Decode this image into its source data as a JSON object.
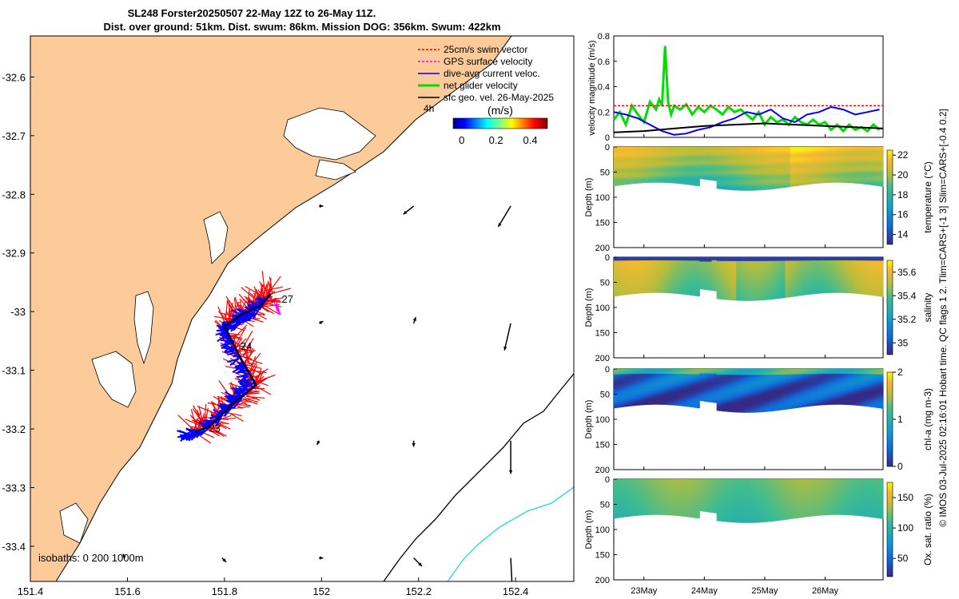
{
  "title": {
    "line1": "SL248 Forster20250507 22-May 12Z to 26-May 11Z.",
    "line2": "Dist. over ground: 51km. Dist. swum: 86km. Mission DOG: 356km. Swum: 422km"
  },
  "footer_text": "© IMOS 03-Jul-2025 02:16:01 Hobart time. QC flags 1  2. Tlim=CARS+[-1 3] Slim=CARS+[-0.4 0.2]",
  "colors": {
    "land": "#fccb99",
    "swim": "#ff0000",
    "gps": "#ff00ff",
    "dive_avg": "#0000ff",
    "net": "#00dd00",
    "geo": "#000000",
    "isobath_200": "#000000",
    "isobath_1000": "#33dddd"
  },
  "map": {
    "legend": [
      {
        "label": "25cm/s swim vector",
        "key": "swim"
      },
      {
        "label": "GPS surface velocity",
        "key": "gps"
      },
      {
        "label": "dive-avg current veloc.",
        "key": "dive_avg"
      },
      {
        "label": "net glider velocity",
        "key": "net"
      },
      {
        "label": "sfc geo. vel. 26-May-2025",
        "key": "geo"
      }
    ],
    "legend_extra": "4h",
    "colorbar_label": "(m/s)",
    "colorbar_ticks": [
      "0",
      "0.2",
      "0.4"
    ],
    "colorbar_range": [
      -0.05,
      0.5
    ],
    "isobaths_label": "isobaths: 0   200  1000m",
    "lon_ticks": [
      "151.4",
      "151.6",
      "151.8",
      "152",
      "152.2",
      "152.4"
    ],
    "lon_values": [
      151.4,
      151.6,
      151.8,
      152.0,
      152.2,
      152.4
    ],
    "lon_range": [
      151.4,
      152.52
    ],
    "lat_ticks": [
      "-32.6",
      "-32.7",
      "-32.8",
      "-32.9",
      "-33",
      "-33.1",
      "-33.2",
      "-33.3",
      "-33.4"
    ],
    "lat_values": [
      -32.6,
      -32.7,
      -32.8,
      -32.9,
      -33.0,
      -33.1,
      -33.2,
      -33.3,
      -33.4
    ],
    "lat_range": [
      -33.46,
      -32.53
    ],
    "day_labels": [
      {
        "text": "27",
        "lon": 151.93,
        "lat": -32.985
      },
      {
        "text": "24",
        "lon": 151.845,
        "lat": -33.065
      },
      {
        "text": "23",
        "lon": 151.78,
        "lat": -33.205
      }
    ],
    "track_net": [
      [
        151.74,
        -33.205
      ],
      [
        151.77,
        -33.195
      ],
      [
        151.82,
        -33.155
      ],
      [
        151.865,
        -33.125
      ],
      [
        151.83,
        -33.075
      ],
      [
        151.8,
        -33.025
      ],
      [
        151.835,
        -33.005
      ],
      [
        151.875,
        -32.99
      ],
      [
        151.895,
        -32.97
      ]
    ],
    "track_dive": [
      [
        151.72,
        -33.21
      ],
      [
        151.75,
        -33.205
      ],
      [
        151.79,
        -33.18
      ],
      [
        151.83,
        -33.145
      ],
      [
        151.86,
        -33.125
      ],
      [
        151.825,
        -33.07
      ],
      [
        151.805,
        -33.03
      ],
      [
        151.84,
        -33.01
      ],
      [
        151.87,
        -32.995
      ],
      [
        151.89,
        -32.975
      ]
    ],
    "geo_arrows": [
      {
        "lon": 151.995,
        "lat": -32.82,
        "u": 0.02,
        "v": 0.0
      },
      {
        "lon": 152.19,
        "lat": -32.82,
        "u": -0.05,
        "v": -0.04
      },
      {
        "lon": 152.39,
        "lat": -32.82,
        "u": -0.06,
        "v": -0.1
      },
      {
        "lon": 151.995,
        "lat": -33.02,
        "u": 0.02,
        "v": 0.01
      },
      {
        "lon": 152.19,
        "lat": -33.02,
        "u": 0.01,
        "v": 0.03
      },
      {
        "lon": 152.39,
        "lat": -33.02,
        "u": -0.03,
        "v": -0.13
      },
      {
        "lon": 151.995,
        "lat": -33.22,
        "u": -0.01,
        "v": -0.02
      },
      {
        "lon": 152.19,
        "lat": -33.22,
        "u": 0.0,
        "v": -0.03
      },
      {
        "lon": 152.39,
        "lat": -33.22,
        "u": 0.0,
        "v": -0.16
      },
      {
        "lon": 151.795,
        "lat": -33.42,
        "u": 0.02,
        "v": -0.02
      },
      {
        "lon": 151.995,
        "lat": -33.42,
        "u": 0.02,
        "v": 0.0
      },
      {
        "lon": 152.19,
        "lat": -33.42,
        "u": 0.04,
        "v": -0.04
      },
      {
        "lon": 152.39,
        "lat": -33.42,
        "u": 0.01,
        "v": -0.2
      },
      {
        "lon": 151.595,
        "lat": -33.42,
        "u": -0.01,
        "v": 0.02
      }
    ]
  },
  "chart_data": [
    {
      "type": "line",
      "title": "",
      "ylabel": "velocity magnitude (m/s)",
      "ylim": [
        0,
        0.8
      ],
      "yticks": [
        "0",
        "0.2",
        "0.4",
        "0.6",
        "0.8"
      ],
      "xlim": [
        22.5,
        26.96
      ],
      "series": [
        {
          "name": "net glider velocity",
          "color": "#00dd00",
          "x": [
            22.5,
            22.6,
            22.7,
            22.8,
            22.9,
            23.0,
            23.1,
            23.2,
            23.25,
            23.3,
            23.35,
            23.4,
            23.45,
            23.5,
            23.6,
            23.7,
            23.8,
            23.9,
            24.0,
            24.1,
            24.2,
            24.3,
            24.4,
            24.5,
            24.6,
            24.7,
            24.8,
            24.9,
            25.0,
            25.1,
            25.2,
            25.3,
            25.4,
            25.5,
            25.6,
            25.7,
            25.8,
            25.9,
            26.0,
            26.1,
            26.2,
            26.3,
            26.4,
            26.5,
            26.6,
            26.7,
            26.8,
            26.9
          ],
          "y": [
            0.14,
            0.2,
            0.1,
            0.25,
            0.18,
            0.12,
            0.28,
            0.22,
            0.3,
            0.25,
            0.72,
            0.28,
            0.18,
            0.25,
            0.22,
            0.26,
            0.18,
            0.24,
            0.2,
            0.25,
            0.22,
            0.18,
            0.24,
            0.2,
            0.22,
            0.18,
            0.14,
            0.2,
            0.1,
            0.16,
            0.12,
            0.14,
            0.1,
            0.16,
            0.12,
            0.1,
            0.14,
            0.1,
            0.12,
            0.06,
            0.1,
            0.05,
            0.1,
            0.06,
            0.08,
            0.05,
            0.1,
            0.06
          ]
        },
        {
          "name": "dive-avg current veloc.",
          "color": "#0000ff",
          "x": [
            22.5,
            22.7,
            22.9,
            23.1,
            23.3,
            23.5,
            23.7,
            23.9,
            24.1,
            24.3,
            24.5,
            24.7,
            24.9,
            25.1,
            25.3,
            25.5,
            25.7,
            25.9,
            26.1,
            26.3,
            26.5,
            26.7,
            26.9
          ],
          "y": [
            0.2,
            0.18,
            0.15,
            0.1,
            0.05,
            0.02,
            0.03,
            0.06,
            0.08,
            0.12,
            0.15,
            0.2,
            0.18,
            0.22,
            0.15,
            0.12,
            0.18,
            0.2,
            0.24,
            0.22,
            0.18,
            0.2,
            0.22
          ]
        },
        {
          "name": "sfc geo. vel.",
          "color": "#000000",
          "x": [
            22.5,
            23.0,
            23.5,
            24.0,
            24.5,
            25.0,
            25.5,
            26.0,
            26.5,
            26.96
          ],
          "y": [
            0.04,
            0.05,
            0.07,
            0.09,
            0.1,
            0.11,
            0.1,
            0.09,
            0.08,
            0.07
          ]
        },
        {
          "name": "25cm/s reference",
          "color": "#ff0000",
          "x": [
            22.5,
            26.96
          ],
          "y": [
            0.25,
            0.25
          ]
        }
      ]
    },
    {
      "type": "heatmap",
      "ylabel": "Depth (m)",
      "cbar_label": "temperature (°C)",
      "cbar_ticks": [
        "14",
        "16",
        "18",
        "20",
        "22"
      ],
      "cbar_range": [
        13,
        22.5
      ],
      "palette": "parula",
      "ylim": [
        200,
        0
      ],
      "yticks": [
        "0",
        "50",
        "100",
        "150",
        "200"
      ]
    },
    {
      "type": "heatmap",
      "ylabel": "Depth (m)",
      "cbar_label": "salinity",
      "cbar_ticks": [
        "35",
        "35.2",
        "35.4",
        "35.6"
      ],
      "cbar_range": [
        34.9,
        35.7
      ],
      "palette": "parula",
      "ylim": [
        200,
        0
      ],
      "yticks": [
        "0",
        "50",
        "100",
        "150",
        "200"
      ]
    },
    {
      "type": "heatmap",
      "ylabel": "Depth (m)",
      "cbar_label": "chl-a (mg m-3)",
      "cbar_ticks": [
        "0",
        "1",
        "2"
      ],
      "cbar_range": [
        0,
        2
      ],
      "palette": "parula",
      "ylim": [
        200,
        0
      ],
      "yticks": [
        "0",
        "50",
        "100",
        "150",
        "200"
      ]
    },
    {
      "type": "heatmap",
      "ylabel": "Depth (m)",
      "cbar_label": "Ox. sat. ratio (%)",
      "cbar_ticks": [
        "50",
        "100",
        "150"
      ],
      "cbar_range": [
        20,
        175
      ],
      "palette": "parula",
      "ylim": [
        200,
        0
      ],
      "yticks": [
        "0",
        "50",
        "100",
        "150",
        "200"
      ]
    }
  ],
  "time_axis": {
    "ticks": [
      "23May",
      "24May",
      "25May",
      "26May"
    ],
    "values": [
      23,
      24,
      25,
      26
    ],
    "range": [
      22.5,
      26.96
    ]
  }
}
